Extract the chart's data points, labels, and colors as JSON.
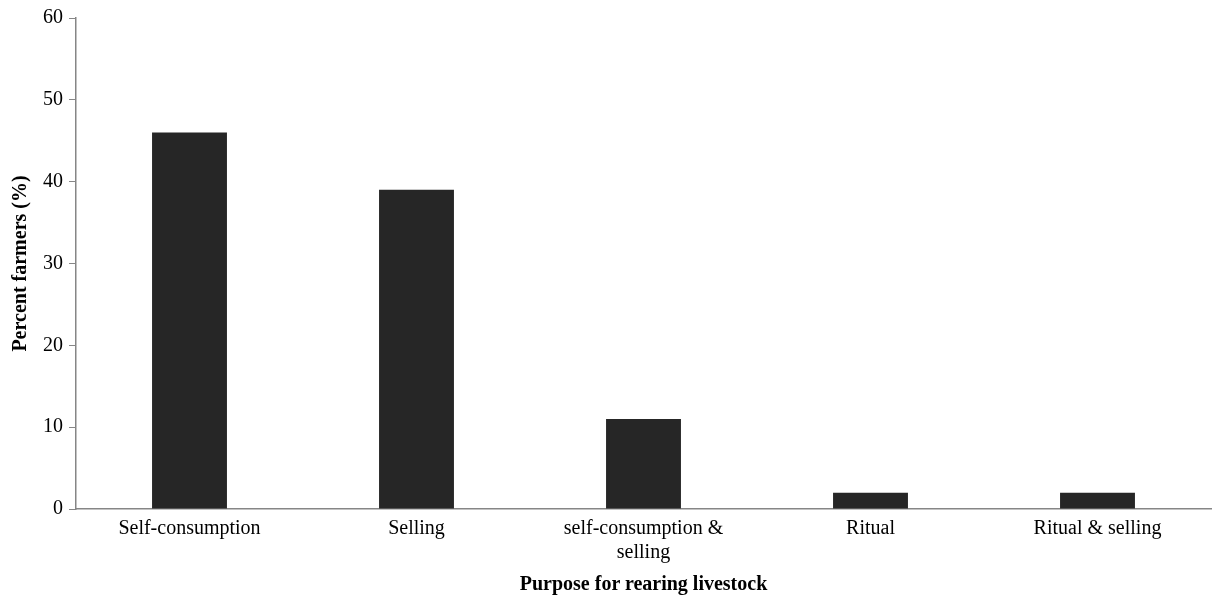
{
  "chart_data": {
    "type": "bar",
    "xlabel": "Purpose for rearing livestock",
    "ylabel": "Percent farmers (%)",
    "categories": [
      "Self-consumption",
      "Selling",
      "self-consumption & selling",
      "Ritual",
      "Ritual & selling"
    ],
    "values": [
      46,
      39,
      11,
      2,
      2
    ],
    "color": "#262626",
    "ylim": [
      0,
      60
    ],
    "yticks": [
      0,
      10,
      20,
      30,
      40,
      50,
      60
    ],
    "grid": false,
    "legend": false
  }
}
